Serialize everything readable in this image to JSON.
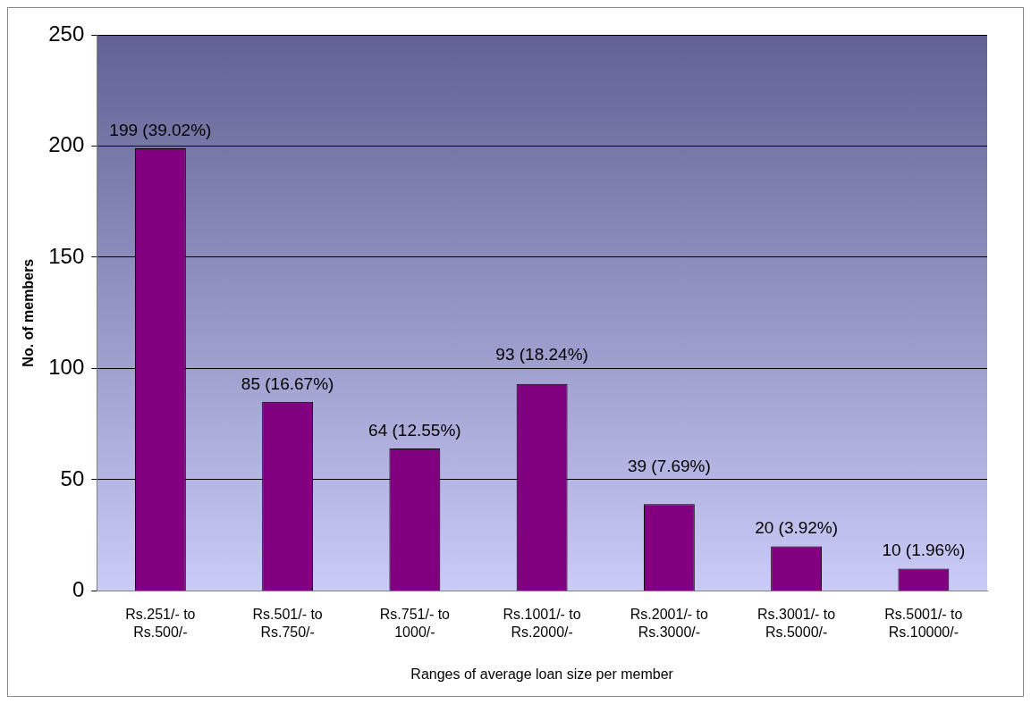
{
  "chart_data": {
    "type": "bar",
    "xlabel": "Ranges of average loan size per member",
    "ylabel": "No. of members",
    "categories": [
      "Rs.251/- to Rs.500/-",
      "Rs.501/- to Rs.750/-",
      "Rs.751/- to 1000/-",
      "Rs.1001/- to Rs.2000/-",
      "Rs.2001/- to Rs.3000/-",
      "Rs.3001/- to Rs.5000/-",
      "Rs.5001/- to Rs.10000/-"
    ],
    "values": [
      199,
      85,
      64,
      93,
      39,
      20,
      10
    ],
    "value_labels": [
      "199 (39.02%)",
      "85 (16.67%)",
      "64 (12.55%)",
      "93 (18.24%)",
      "39 (7.69%)",
      "20 (3.92%)",
      "10 (1.96%)"
    ],
    "color": "#800080",
    "ylim": [
      0,
      250
    ],
    "yticks": [
      0,
      50,
      100,
      150,
      200,
      250
    ],
    "grid": "y",
    "legend": false
  }
}
